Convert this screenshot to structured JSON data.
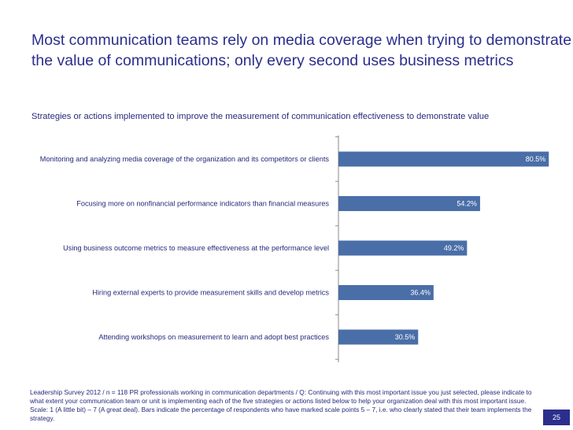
{
  "title_lines": [
    "Most communication teams rely on media coverage when trying to demonstrate",
    "the value of communications; only every second uses business metrics"
  ],
  "chart_data": {
    "type": "bar",
    "orientation": "horizontal",
    "title": "Strategies or actions implemented to improve the measurement of communication effectiveness to demonstrate value",
    "categories": [
      "Monitoring and analyzing media coverage of the organization and its competitors or clients",
      "Focusing more on nonfinancial performance indicators than financial measures",
      "Using business outcome metrics to measure effectiveness at the performance level",
      "Hiring external experts to provide measurement skills and develop metrics",
      "Attending workshops on measurement to learn and adopt best practices"
    ],
    "values": [
      80.5,
      54.2,
      49.2,
      36.4,
      30.5
    ],
    "value_labels": [
      "80.5%",
      "54.2%",
      "49.2%",
      "36.4%",
      "30.5%"
    ],
    "unit": "%",
    "xlim": [
      0,
      100
    ],
    "bar_color": "#4a6ea8"
  },
  "footnote": "Leadership Survey 2012 / n = 118 PR professionals working in communication departments / Q: Continuing with this most important issue you just selected, please indicate to what extent your communication team or unit is implementing each of the five strategies or actions listed below to help your organization deal with this most important issue. Scale: 1 (A little bit) – 7 (A great deal). Bars indicate the percentage of respondents who have marked scale points 5 – 7, i.e. who clearly stated that their team implements the strategy.",
  "page_number": "25"
}
